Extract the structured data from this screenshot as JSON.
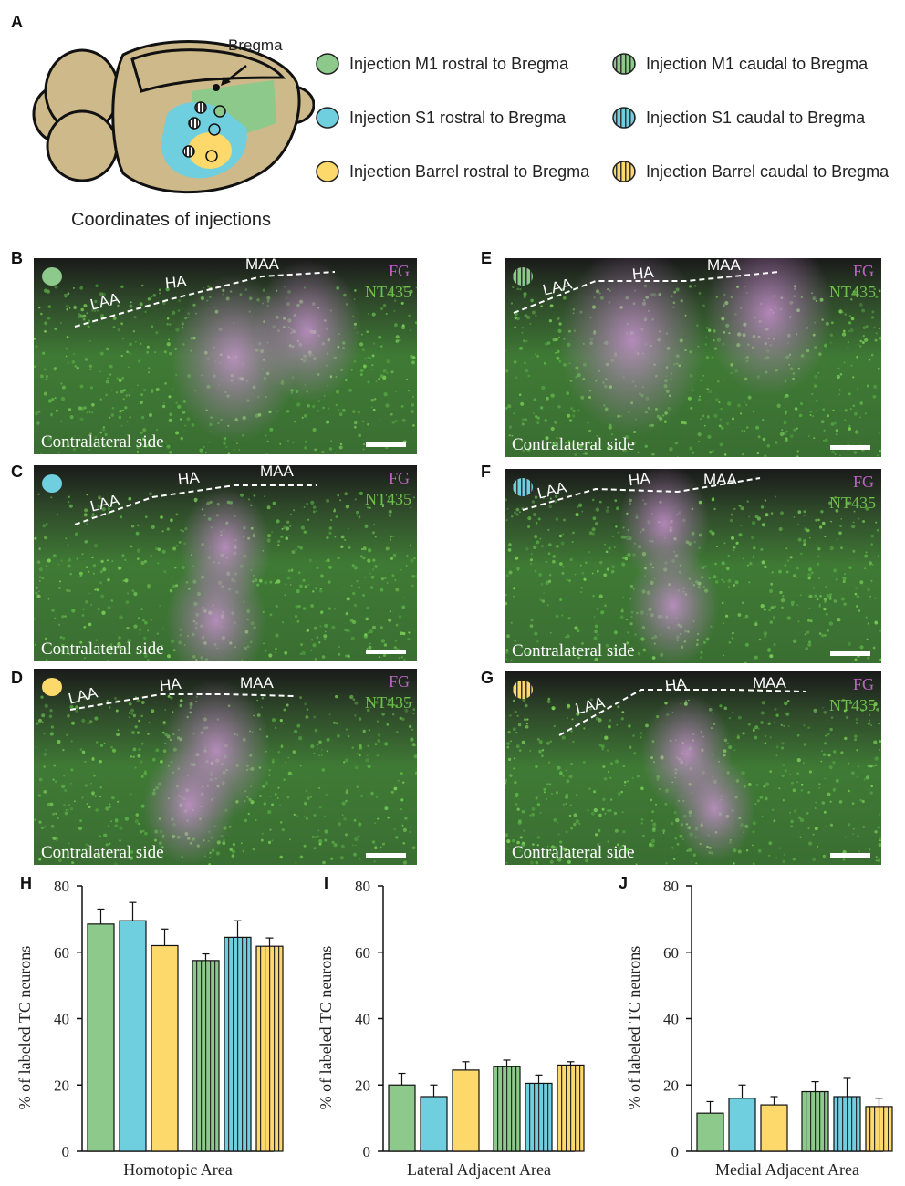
{
  "panel_labels": {
    "A": "A",
    "B": "B",
    "C": "C",
    "D": "D",
    "E": "E",
    "F": "F",
    "G": "G",
    "H": "H",
    "I": "I",
    "J": "J"
  },
  "schematic": {
    "bregma": "Bregma",
    "caption": "Coordinates of injections"
  },
  "legend": [
    {
      "label": "Injection M1 rostral to Bregma",
      "color": "#8cc98a",
      "striped": false
    },
    {
      "label": "Injection M1 caudal to Bregma",
      "color": "#8cc98a",
      "striped": true
    },
    {
      "label": "Injection S1 rostral to Bregma",
      "color": "#6fcfdf",
      "striped": false
    },
    {
      "label": "Injection S1 caudal to Bregma",
      "color": "#6fcfdf",
      "striped": true
    },
    {
      "label": "Injection Barrel rostral to Bregma",
      "color": "#fdd86a",
      "striped": false
    },
    {
      "label": "Injection Barrel caudal to Bregma",
      "color": "#fdd86a",
      "striped": true
    }
  ],
  "micrographs": {
    "B": {
      "laa": "LAA",
      "ha": "HA",
      "maa": "MAA",
      "fg": "FG",
      "nt": "NT435",
      "side": "Contralateral side"
    },
    "C": {
      "laa": "LAA",
      "ha": "HA",
      "maa": "MAA",
      "fg": "FG",
      "nt": "NT435",
      "side": "Contralateral side"
    },
    "D": {
      "laa": "LAA",
      "ha": "HA",
      "maa": "MAA",
      "fg": "FG",
      "nt": "NT435",
      "side": "Contralateral side"
    },
    "E": {
      "laa": "LAA",
      "ha": "HA",
      "maa": "MAA",
      "fg": "FG",
      "nt": "NT435",
      "side": "Contralateral side"
    },
    "F": {
      "laa": "LAA",
      "ha": "HA",
      "maa": "MAA",
      "fg": "FG",
      "nt": "NT435",
      "side": "Contralateral side"
    },
    "G": {
      "laa": "LAA",
      "ha": "HA",
      "maa": "MAA",
      "fg": "FG",
      "nt": "NT435",
      "side": "Contralateral side"
    }
  },
  "colors": {
    "m1": "#8cc98a",
    "s1": "#6fcfdf",
    "barrel": "#fdd86a"
  },
  "chart_data": [
    {
      "type": "bar",
      "panel": "H",
      "categories": [
        "M1 rostral",
        "S1 rostral",
        "Barrel rostral",
        "M1 caudal",
        "S1 caudal",
        "Barrel caudal"
      ],
      "values": [
        68.5,
        69.5,
        62,
        57.5,
        64.5,
        61.8
      ],
      "errors": [
        4.5,
        5.5,
        5,
        2,
        5,
        2.5
      ],
      "xlabel": "Homotopic Area",
      "ylabel": "% of labeled TC neurons",
      "ylim": [
        0,
        80
      ],
      "yticks": [
        0,
        20,
        40,
        60,
        80
      ]
    },
    {
      "type": "bar",
      "panel": "I",
      "categories": [
        "M1 rostral",
        "S1 rostral",
        "Barrel rostral",
        "M1 caudal",
        "S1 caudal",
        "Barrel caudal"
      ],
      "values": [
        20,
        16.5,
        24.5,
        25.5,
        20.5,
        26
      ],
      "errors": [
        3.5,
        3.5,
        2.5,
        2,
        2.5,
        1
      ],
      "xlabel": "Lateral Adjacent Area",
      "ylabel": "% of labeled TC neurons",
      "ylim": [
        0,
        80
      ],
      "yticks": [
        0,
        20,
        40,
        60,
        80
      ]
    },
    {
      "type": "bar",
      "panel": "J",
      "categories": [
        "M1 rostral",
        "S1 rostral",
        "Barrel rostral",
        "M1 caudal",
        "S1 caudal",
        "Barrel caudal"
      ],
      "values": [
        11.5,
        16,
        14,
        18,
        16.5,
        13.5
      ],
      "errors": [
        3.5,
        4,
        2.5,
        3,
        5.5,
        2.5
      ],
      "xlabel": "Medial Adjacent Area",
      "ylabel": "% of labeled TC neurons",
      "ylim": [
        0,
        80
      ],
      "yticks": [
        0,
        20,
        40,
        60,
        80
      ]
    }
  ]
}
